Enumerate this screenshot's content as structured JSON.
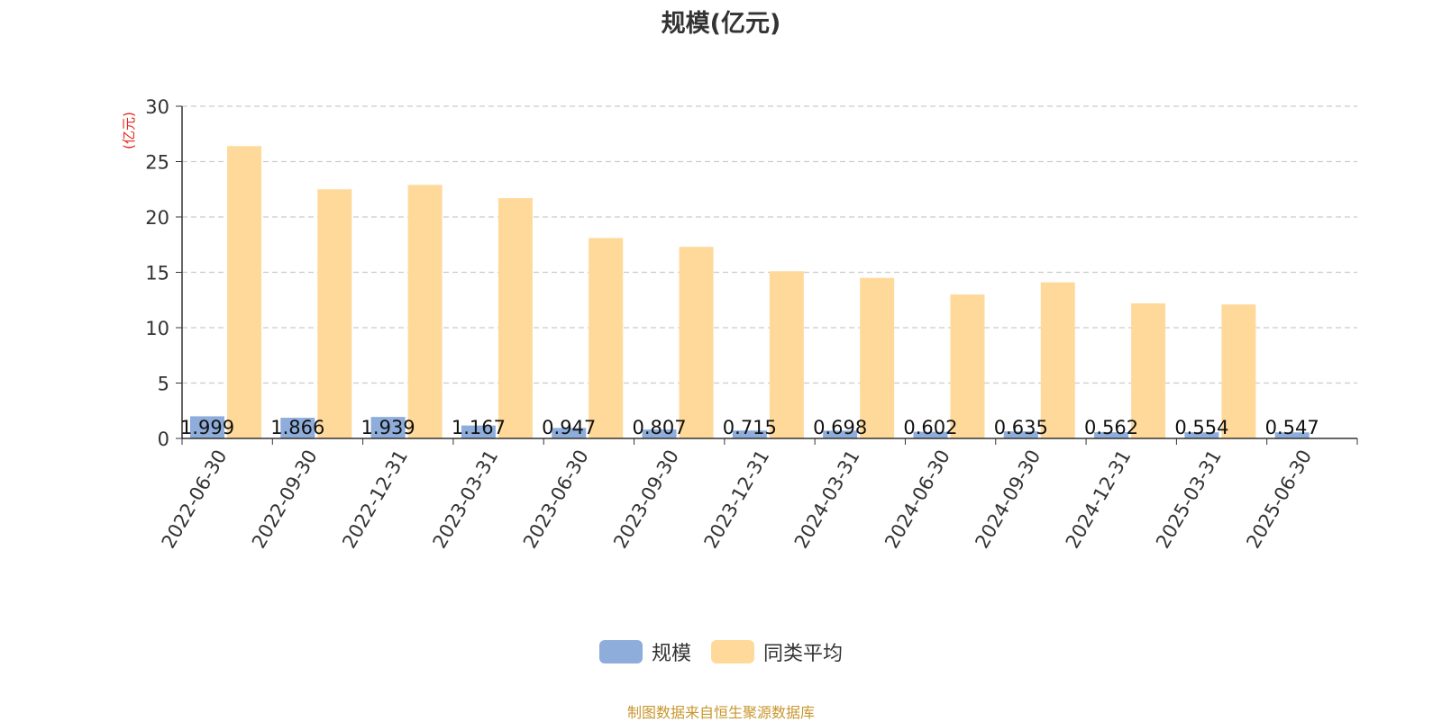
{
  "chart_data": {
    "type": "bar",
    "title": "规模(亿元)",
    "ylabel": "(亿元)",
    "xlabel": "",
    "ylim": [
      0,
      30
    ],
    "yticks": [
      "0",
      "5",
      "10",
      "15",
      "20",
      "25",
      "30"
    ],
    "grid": true,
    "legend_position": "bottom",
    "categories": [
      "2022-06-30",
      "2022-09-30",
      "2022-12-31",
      "2023-03-31",
      "2023-06-30",
      "2023-09-30",
      "2023-12-31",
      "2024-03-31",
      "2024-06-30",
      "2024-09-30",
      "2024-12-31",
      "2025-03-31",
      "2025-06-30"
    ],
    "series": [
      {
        "name": "规模",
        "color": "#8eadda",
        "values": [
          1.999,
          1.866,
          1.939,
          1.167,
          0.947,
          0.807,
          0.715,
          0.698,
          0.602,
          0.635,
          0.562,
          0.554,
          0.547
        ],
        "labels": [
          "1.999",
          "1.866",
          "1.939",
          "1.167",
          "0.947",
          "0.807",
          "0.715",
          "0.698",
          "0.602",
          "0.635",
          "0.562",
          "0.554",
          "0.547"
        ]
      },
      {
        "name": "同类平均",
        "color": "#ffd99a",
        "values": [
          26.4,
          22.5,
          22.9,
          21.7,
          18.1,
          17.3,
          15.1,
          14.5,
          13.0,
          14.1,
          12.2,
          12.1,
          null
        ]
      }
    ]
  },
  "source_note": "制图数据来自恒生聚源数据库"
}
